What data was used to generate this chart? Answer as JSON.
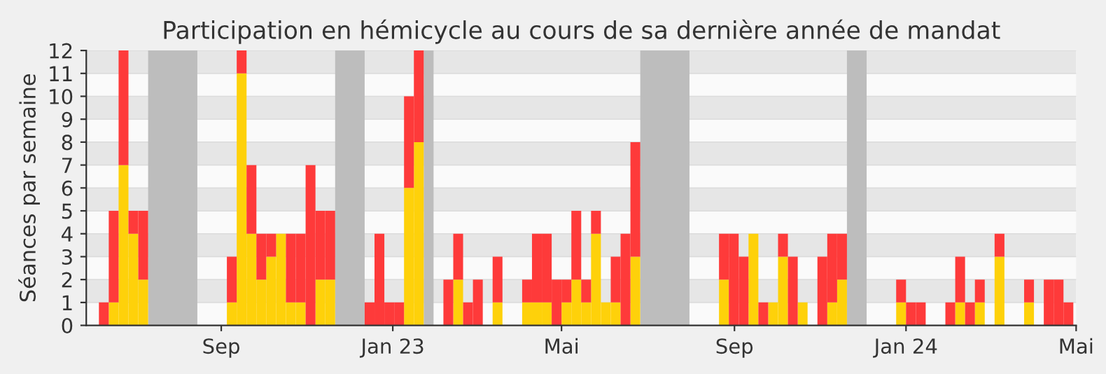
{
  "chart_data": {
    "type": "bar",
    "stacked": true,
    "title": "Participation en hémicycle au cours de sa dernière année de mandat",
    "ylabel": "Séances par semaine",
    "x": [
      "2022-06-06",
      "2022-06-13",
      "2022-06-20",
      "2022-06-27",
      "2022-07-04",
      "2022-09-05",
      "2022-09-12",
      "2022-09-19",
      "2022-09-26",
      "2022-10-03",
      "2022-10-10",
      "2022-10-17",
      "2022-10-24",
      "2022-10-31",
      "2022-11-07",
      "2022-11-14",
      "2022-12-12",
      "2022-12-19",
      "2022-12-26",
      "2023-01-02",
      "2023-01-09",
      "2023-01-16",
      "2023-02-06",
      "2023-02-13",
      "2023-02-20",
      "2023-02-27",
      "2023-03-13",
      "2023-04-03",
      "2023-04-10",
      "2023-04-17",
      "2023-04-24",
      "2023-05-01",
      "2023-05-08",
      "2023-05-15",
      "2023-05-22",
      "2023-05-29",
      "2023-06-05",
      "2023-06-12",
      "2023-06-19",
      "2023-08-21",
      "2023-08-28",
      "2023-09-04",
      "2023-09-11",
      "2023-09-18",
      "2023-09-25",
      "2023-10-02",
      "2023-10-09",
      "2023-10-16",
      "2023-10-30",
      "2023-11-06",
      "2023-11-13",
      "2023-12-25",
      "2024-01-01",
      "2024-01-08",
      "2024-01-29",
      "2024-02-05",
      "2024-02-12",
      "2024-02-19",
      "2024-03-04",
      "2024-03-25",
      "2024-04-08",
      "2024-04-15",
      "2024-04-22"
    ],
    "series": [
      {
        "color": "#fed10a",
        "values": [
          0,
          1,
          7,
          4,
          2,
          1,
          11,
          4,
          2,
          3,
          4,
          1,
          1,
          0,
          2,
          2,
          0,
          0,
          0,
          0,
          6,
          8,
          0,
          2,
          0,
          0,
          1,
          1,
          1,
          1,
          0,
          1,
          2,
          1,
          4,
          1,
          1,
          0,
          3,
          2,
          0,
          0,
          4,
          0,
          1,
          3,
          0,
          1,
          0,
          1,
          2,
          1,
          0,
          0,
          0,
          1,
          0,
          1,
          3,
          1,
          0,
          0,
          0
        ]
      },
      {
        "color": "#fe3a3a",
        "values": [
          1,
          4,
          5,
          1,
          3,
          2,
          1,
          3,
          2,
          1,
          0,
          3,
          3,
          7,
          3,
          3,
          1,
          4,
          1,
          1,
          4,
          4,
          2,
          2,
          1,
          2,
          2,
          1,
          3,
          3,
          2,
          1,
          3,
          1,
          1,
          0,
          2,
          4,
          5,
          2,
          4,
          3,
          0,
          1,
          0,
          1,
          3,
          0,
          3,
          3,
          2,
          1,
          1,
          1,
          1,
          2,
          1,
          1,
          1,
          1,
          2,
          2,
          1
        ]
      }
    ],
    "bands": [
      {
        "axis": "x",
        "from": "2022-07-11",
        "to": "2022-08-15",
        "color": "#bdbdbd"
      },
      {
        "axis": "x",
        "from": "2022-11-21",
        "to": "2022-12-12",
        "color": "#bdbdbd"
      },
      {
        "axis": "x",
        "from": "2023-01-23",
        "to": "2023-01-30",
        "color": "#bdbdbd"
      },
      {
        "axis": "x",
        "from": "2023-06-26",
        "to": "2023-07-31",
        "color": "#bdbdbd"
      },
      {
        "axis": "x",
        "from": "2023-11-20",
        "to": "2023-12-04",
        "color": "#bdbdbd"
      }
    ],
    "xlim": [
      "2022-05-28",
      "2024-05-01"
    ],
    "xticks": [
      {
        "value": "2022-09-01",
        "label": "Sep"
      },
      {
        "value": "2023-01-01",
        "label": "Jan 23"
      },
      {
        "value": "2023-05-01",
        "label": "Mai"
      },
      {
        "value": "2023-09-01",
        "label": "Sep"
      },
      {
        "value": "2024-01-01",
        "label": "Jan 24"
      },
      {
        "value": "2024-05-01",
        "label": "Mai"
      }
    ],
    "ylim": [
      0,
      12
    ],
    "yticks": [
      0,
      1,
      2,
      3,
      4,
      5,
      6,
      7,
      8,
      9,
      10,
      11,
      12
    ],
    "grid": "y"
  }
}
